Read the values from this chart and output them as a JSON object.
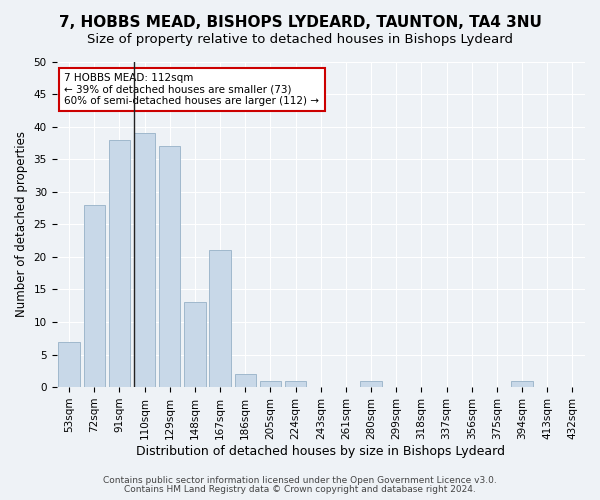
{
  "title1": "7, HOBBS MEAD, BISHOPS LYDEARD, TAUNTON, TA4 3NU",
  "title2": "Size of property relative to detached houses in Bishops Lydeard",
  "xlabel": "Distribution of detached houses by size in Bishops Lydeard",
  "ylabel": "Number of detached properties",
  "categories": [
    "53sqm",
    "72sqm",
    "91sqm",
    "110sqm",
    "129sqm",
    "148sqm",
    "167sqm",
    "186sqm",
    "205sqm",
    "224sqm",
    "243sqm",
    "261sqm",
    "280sqm",
    "299sqm",
    "318sqm",
    "337sqm",
    "356sqm",
    "375sqm",
    "394sqm",
    "413sqm",
    "432sqm"
  ],
  "values": [
    7,
    28,
    38,
    39,
    37,
    13,
    21,
    2,
    1,
    1,
    0,
    0,
    1,
    0,
    0,
    0,
    0,
    0,
    1,
    0,
    0
  ],
  "bar_color": "#c8d8e8",
  "bar_edge_color": "#a0b8cc",
  "vline_x_index": 3,
  "vline_color": "#222222",
  "annotation_text": "7 HOBBS MEAD: 112sqm\n← 39% of detached houses are smaller (73)\n60% of semi-detached houses are larger (112) →",
  "annotation_box_color": "#ffffff",
  "annotation_box_edge": "#cc0000",
  "ylim": [
    0,
    50
  ],
  "yticks": [
    0,
    5,
    10,
    15,
    20,
    25,
    30,
    35,
    40,
    45,
    50
  ],
  "footer1": "Contains HM Land Registry data © Crown copyright and database right 2024.",
  "footer2": "Contains public sector information licensed under the Open Government Licence v3.0.",
  "background_color": "#eef2f6",
  "grid_color": "#ffffff",
  "title1_fontsize": 11,
  "title2_fontsize": 9.5,
  "xlabel_fontsize": 9,
  "ylabel_fontsize": 8.5,
  "tick_fontsize": 7.5,
  "footer_fontsize": 6.5
}
